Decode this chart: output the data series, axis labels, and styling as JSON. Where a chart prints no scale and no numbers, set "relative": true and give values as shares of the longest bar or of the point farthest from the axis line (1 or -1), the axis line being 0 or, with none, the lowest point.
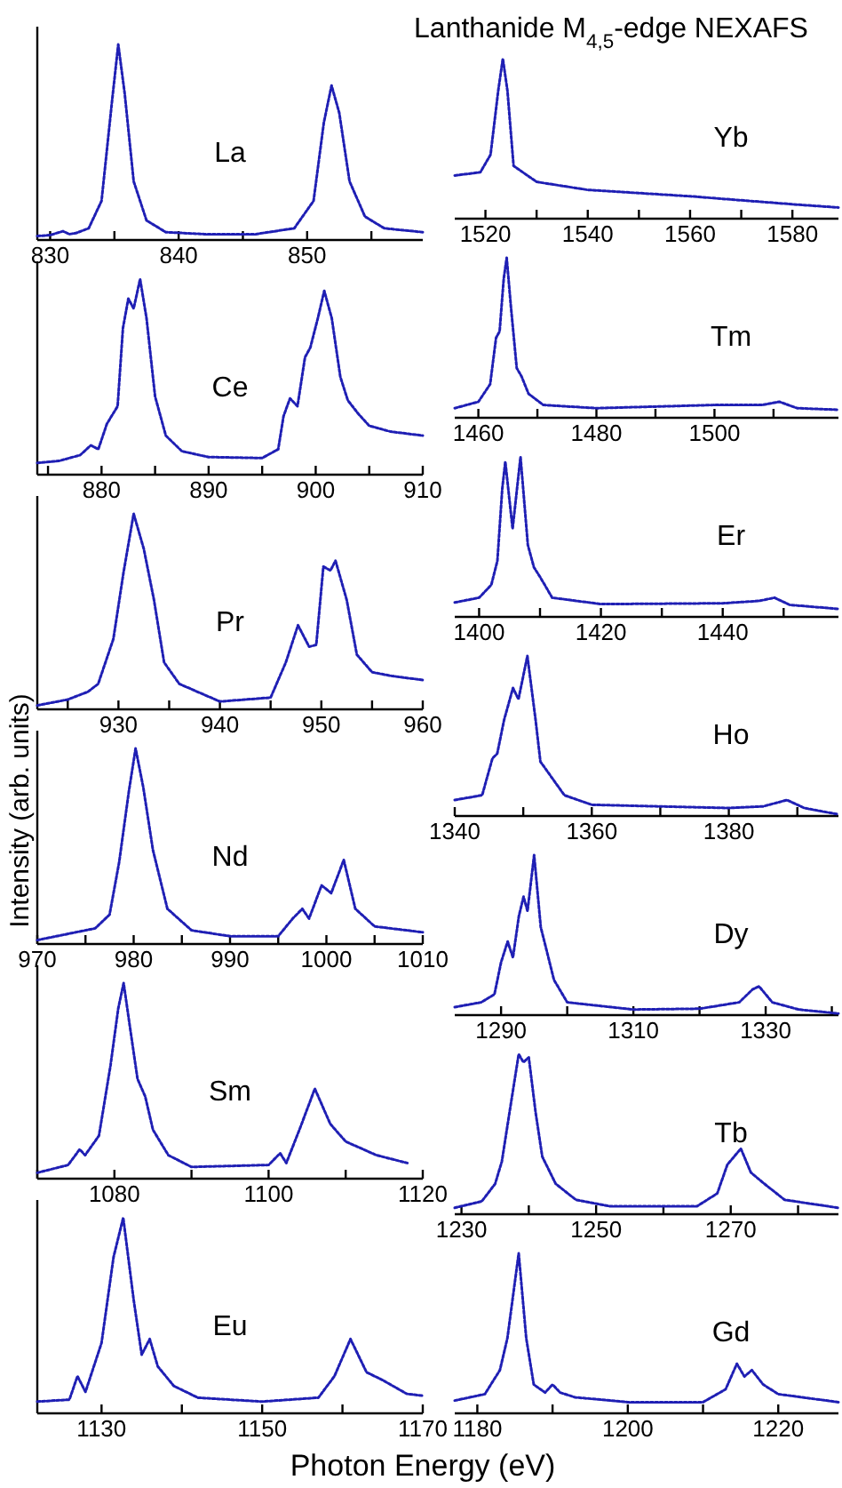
{
  "chart_data": [
    {
      "type": "line",
      "relative": true,
      "line_style": "dotted",
      "xlim": [
        829,
        859
      ],
      "xticks": [
        830,
        {
          "value": 835,
          "label": null
        },
        840,
        {
          "value": 845,
          "label": null
        },
        850,
        {
          "value": 855,
          "label": null
        }
      ],
      "series": [
        {
          "name": "La",
          "color": "#1f1fb4",
          "x": [
            829,
            830,
            831,
            831.5,
            832,
            833,
            834,
            834.8,
            835.3,
            835.8,
            836.5,
            837.5,
            839,
            842,
            846,
            849,
            850.5,
            851.3,
            851.9,
            852.5,
            853.3,
            854.5,
            856,
            859
          ],
          "values": [
            0.02,
            0.025,
            0.045,
            0.03,
            0.035,
            0.06,
            0.2,
            0.7,
            1,
            0.75,
            0.3,
            0.1,
            0.04,
            0.03,
            0.03,
            0.06,
            0.2,
            0.6,
            0.79,
            0.65,
            0.3,
            0.12,
            0.06,
            0.04
          ]
        }
      ]
    },
    {
      "type": "line",
      "relative": true,
      "line_style": "dotted",
      "xlim": [
        874,
        910
      ],
      "xticks": [
        {
          "value": 875,
          "label": null
        },
        880,
        {
          "value": 885,
          "label": null
        },
        890,
        {
          "value": 895,
          "label": null
        },
        900,
        {
          "value": 905,
          "label": null
        },
        910
      ],
      "series": [
        {
          "name": "Ce",
          "color": "#1f1fb4",
          "x": [
            874,
            876,
            878,
            879,
            879.7,
            880.5,
            881.5,
            882,
            882.5,
            883,
            883.6,
            884.2,
            885,
            886,
            887.5,
            890,
            895,
            896.5,
            897,
            897.6,
            898.3,
            899,
            899.5,
            900.2,
            900.8,
            901.5,
            902.3,
            903,
            904,
            905,
            907,
            910
          ],
          "values": [
            0.06,
            0.07,
            0.1,
            0.15,
            0.13,
            0.26,
            0.35,
            0.75,
            0.9,
            0.85,
            1,
            0.8,
            0.4,
            0.2,
            0.12,
            0.09,
            0.085,
            0.13,
            0.3,
            0.39,
            0.35,
            0.6,
            0.65,
            0.8,
            0.94,
            0.8,
            0.5,
            0.38,
            0.31,
            0.25,
            0.22,
            0.2
          ]
        }
      ]
    },
    {
      "type": "line",
      "relative": true,
      "line_style": "dotted",
      "xlim": [
        922,
        960
      ],
      "xticks": [
        {
          "value": 925,
          "label": null
        },
        930,
        {
          "value": 935,
          "label": null
        },
        940,
        {
          "value": 945,
          "label": null
        },
        950,
        {
          "value": 955,
          "label": null
        },
        960
      ],
      "series": [
        {
          "name": "Pr",
          "color": "#1f1fb4",
          "x": [
            922,
            925,
            927,
            928,
            929.5,
            930.5,
            931.5,
            932.5,
            933.5,
            934.5,
            936,
            940,
            945,
            946.5,
            947.7,
            948.8,
            949.5,
            950.2,
            950.9,
            951.4,
            952.5,
            953.5,
            955,
            957,
            960
          ],
          "values": [
            0.02,
            0.05,
            0.09,
            0.13,
            0.36,
            0.7,
            1,
            0.82,
            0.56,
            0.24,
            0.13,
            0.04,
            0.06,
            0.24,
            0.43,
            0.32,
            0.33,
            0.73,
            0.71,
            0.76,
            0.56,
            0.28,
            0.19,
            0.17,
            0.15
          ]
        }
      ]
    },
    {
      "type": "line",
      "relative": true,
      "ylabel": "Intensity (arb. units)",
      "line_style": "dotted",
      "xlim": [
        970,
        1010
      ],
      "xticks": [
        970,
        {
          "value": 975,
          "label": null
        },
        980,
        {
          "value": 985,
          "label": null
        },
        990,
        {
          "value": 995,
          "label": null
        },
        1000,
        {
          "value": 1005,
          "label": null
        },
        1010
      ],
      "series": [
        {
          "name": "Nd",
          "color": "#1f1fb4",
          "x": [
            970,
            974,
            976,
            977.5,
            978.5,
            979.5,
            980.2,
            981,
            982,
            983.5,
            986,
            990,
            995,
            996.5,
            997.5,
            998.2,
            999.5,
            1000.5,
            1001.8,
            1003,
            1005,
            1010
          ],
          "values": [
            0.02,
            0.06,
            0.08,
            0.15,
            0.42,
            0.78,
            1,
            0.8,
            0.48,
            0.18,
            0.07,
            0.04,
            0.04,
            0.13,
            0.18,
            0.13,
            0.3,
            0.26,
            0.43,
            0.18,
            0.09,
            0.06
          ]
        }
      ]
    },
    {
      "type": "line",
      "relative": true,
      "line_style": "dotted",
      "xlim": [
        1070,
        1120
      ],
      "xticks": [
        {
          "value": 1070,
          "label": null
        },
        1080,
        {
          "value": 1090,
          "label": null
        },
        1100,
        {
          "value": 1110,
          "label": null
        },
        1120
      ],
      "series": [
        {
          "name": "Sm",
          "color": "#1f1fb4",
          "x": [
            1070,
            1074,
            1075.5,
            1076.2,
            1078,
            1079.5,
            1080.5,
            1081.2,
            1082,
            1083,
            1084,
            1085,
            1087,
            1090,
            1100,
            1101.5,
            1102.3,
            1104,
            1106,
            1108,
            1110,
            1114,
            1118
          ],
          "values": [
            0.03,
            0.07,
            0.15,
            0.12,
            0.22,
            0.58,
            0.87,
            1,
            0.78,
            0.51,
            0.42,
            0.25,
            0.12,
            0.06,
            0.07,
            0.13,
            0.08,
            0.25,
            0.46,
            0.28,
            0.19,
            0.12,
            0.08
          ]
        }
      ]
    },
    {
      "type": "line",
      "relative": true,
      "xlabel": "Photon Energy (eV)",
      "line_style": "dotted",
      "xlim": [
        1122,
        1170
      ],
      "xticks": [
        1130,
        {
          "value": 1140,
          "label": null
        },
        1150,
        {
          "value": 1160,
          "label": null
        },
        1170
      ],
      "series": [
        {
          "name": "Eu",
          "color": "#1f1fb4",
          "x": [
            1122,
            1126,
            1127,
            1128,
            1130,
            1131.5,
            1132.7,
            1134,
            1135,
            1136,
            1137,
            1139,
            1142,
            1150,
            1157,
            1159,
            1161,
            1163,
            1165,
            1168,
            1170
          ],
          "values": [
            0.06,
            0.07,
            0.19,
            0.11,
            0.36,
            0.8,
            1,
            0.58,
            0.3,
            0.38,
            0.24,
            0.14,
            0.08,
            0.06,
            0.08,
            0.19,
            0.38,
            0.21,
            0.17,
            0.1,
            0.09
          ]
        }
      ]
    },
    {
      "type": "line",
      "relative": true,
      "title": "Lanthanide M$_{4,5}$-edge NEXAFS",
      "line_style": "dotted",
      "xlim": [
        1514,
        1589
      ],
      "xticks": [
        1520,
        {
          "value": 1530,
          "label": null
        },
        1540,
        {
          "value": 1550,
          "label": null
        },
        1560,
        {
          "value": 1570,
          "label": null
        },
        1580
      ],
      "series": [
        {
          "name": "Yb",
          "color": "#1f1fb4",
          "x": [
            1514,
            1519,
            1521,
            1522.5,
            1523.4,
            1524.3,
            1525.5,
            1530,
            1540,
            1560,
            1580,
            1589
          ],
          "values": [
            0.27,
            0.29,
            0.4,
            0.8,
            1,
            0.8,
            0.33,
            0.23,
            0.18,
            0.14,
            0.09,
            0.07
          ]
        }
      ]
    },
    {
      "type": "line",
      "relative": true,
      "line_style": "dotted",
      "xlim": [
        1456,
        1521
      ],
      "xticks": [
        1460,
        {
          "value": 1470,
          "label": null
        },
        1480,
        {
          "value": 1490,
          "label": null
        },
        1500,
        {
          "value": 1510,
          "label": null
        }
      ],
      "series": [
        {
          "name": "Tm",
          "color": "#1f1fb4",
          "x": [
            1456,
            1460,
            1462,
            1463,
            1463.6,
            1464.3,
            1464.8,
            1465.5,
            1466.5,
            1467.3,
            1468.5,
            1471,
            1480,
            1500,
            1508,
            1511,
            1514,
            1521
          ],
          "values": [
            0.06,
            0.1,
            0.21,
            0.5,
            0.54,
            0.87,
            1,
            0.7,
            0.31,
            0.26,
            0.15,
            0.08,
            0.06,
            0.08,
            0.08,
            0.1,
            0.06,
            0.05
          ]
        }
      ]
    },
    {
      "type": "line",
      "relative": true,
      "line_style": "dotted",
      "xlim": [
        1396,
        1459
      ],
      "xticks": [
        1400,
        {
          "value": 1410,
          "label": null
        },
        1420,
        {
          "value": 1430,
          "label": null
        },
        1440,
        {
          "value": 1450,
          "label": null
        }
      ],
      "series": [
        {
          "name": "Er",
          "color": "#1f1fb4",
          "x": [
            1396,
            1400,
            1402,
            1403,
            1403.8,
            1404.3,
            1405.5,
            1406.8,
            1408,
            1409,
            1410,
            1412,
            1420,
            1440,
            1446,
            1448.5,
            1451,
            1459
          ],
          "values": [
            0.09,
            0.12,
            0.2,
            0.35,
            0.8,
            0.97,
            0.55,
            1,
            0.45,
            0.31,
            0.25,
            0.12,
            0.08,
            0.085,
            0.1,
            0.12,
            0.075,
            0.05
          ]
        }
      ]
    },
    {
      "type": "line",
      "relative": true,
      "line_style": "dotted",
      "xlim": [
        1340,
        1396
      ],
      "xticks": [
        1340,
        {
          "value": 1350,
          "label": null
        },
        1360,
        {
          "value": 1370,
          "label": null
        },
        1380,
        {
          "value": 1390,
          "label": null
        }
      ],
      "series": [
        {
          "name": "Ho",
          "color": "#1f1fb4",
          "x": [
            1340,
            1344,
            1345.5,
            1346.2,
            1347.2,
            1348.5,
            1349.3,
            1350.6,
            1351.8,
            1352.5,
            1354,
            1356,
            1360,
            1380,
            1385,
            1388.5,
            1391,
            1396
          ],
          "values": [
            0.1,
            0.13,
            0.36,
            0.39,
            0.6,
            0.8,
            0.73,
            1,
            0.6,
            0.34,
            0.25,
            0.13,
            0.07,
            0.05,
            0.06,
            0.1,
            0.05,
            0.01
          ]
        }
      ]
    },
    {
      "type": "line",
      "relative": true,
      "line_style": "dotted",
      "xlim": [
        1283,
        1341
      ],
      "xticks": [
        1290,
        {
          "value": 1300,
          "label": null
        },
        1310,
        {
          "value": 1320,
          "label": null
        },
        1330,
        {
          "value": 1340,
          "label": null
        }
      ],
      "series": [
        {
          "name": "Dy",
          "color": "#1f1fb4",
          "x": [
            1283,
            1287,
            1289,
            1290,
            1291,
            1291.8,
            1292.7,
            1293.4,
            1294,
            1295,
            1296,
            1298,
            1300,
            1310,
            1320,
            1326,
            1328,
            1329,
            1331,
            1335,
            1341
          ],
          "values": [
            0.05,
            0.08,
            0.13,
            0.33,
            0.46,
            0.36,
            0.62,
            0.74,
            0.65,
            1,
            0.55,
            0.22,
            0.08,
            0.035,
            0.04,
            0.08,
            0.16,
            0.18,
            0.08,
            0.035,
            0.01
          ]
        }
      ]
    },
    {
      "type": "line",
      "relative": true,
      "line_style": "dotted",
      "xlim": [
        1229,
        1286
      ],
      "xticks": [
        1230,
        {
          "value": 1240,
          "label": null
        },
        1250,
        {
          "value": 1260,
          "label": null
        },
        1270,
        {
          "value": 1280,
          "label": null
        }
      ],
      "series": [
        {
          "name": "Tb",
          "color": "#1f1fb4",
          "x": [
            1229,
            1233,
            1235,
            1236,
            1237,
            1238.5,
            1239.2,
            1240,
            1241,
            1242,
            1244,
            1247,
            1252,
            1265,
            1268,
            1269.5,
            1271.5,
            1273,
            1275,
            1278,
            1286
          ],
          "values": [
            0.04,
            0.08,
            0.19,
            0.33,
            0.6,
            1,
            0.95,
            0.98,
            0.64,
            0.36,
            0.19,
            0.09,
            0.05,
            0.05,
            0.13,
            0.31,
            0.41,
            0.26,
            0.19,
            0.09,
            0.04
          ]
        }
      ]
    },
    {
      "type": "line",
      "relative": true,
      "line_style": "dotted",
      "xlim": [
        1177,
        1228
      ],
      "xticks": [
        1180,
        {
          "value": 1190,
          "label": null
        },
        1200,
        {
          "value": 1210,
          "label": null
        },
        1220
      ],
      "series": [
        {
          "name": "Gd",
          "color": "#1f1fb4",
          "x": [
            1177,
            1181,
            1183,
            1184,
            1185.5,
            1186.5,
            1187.5,
            1189,
            1190,
            1191,
            1193,
            1200,
            1210,
            1213,
            1214.5,
            1215.5,
            1216.5,
            1218,
            1220,
            1228
          ],
          "values": [
            0.08,
            0.12,
            0.27,
            0.47,
            1,
            0.47,
            0.18,
            0.13,
            0.18,
            0.13,
            0.1,
            0.07,
            0.07,
            0.15,
            0.31,
            0.23,
            0.27,
            0.18,
            0.12,
            0.07
          ]
        }
      ]
    }
  ]
}
